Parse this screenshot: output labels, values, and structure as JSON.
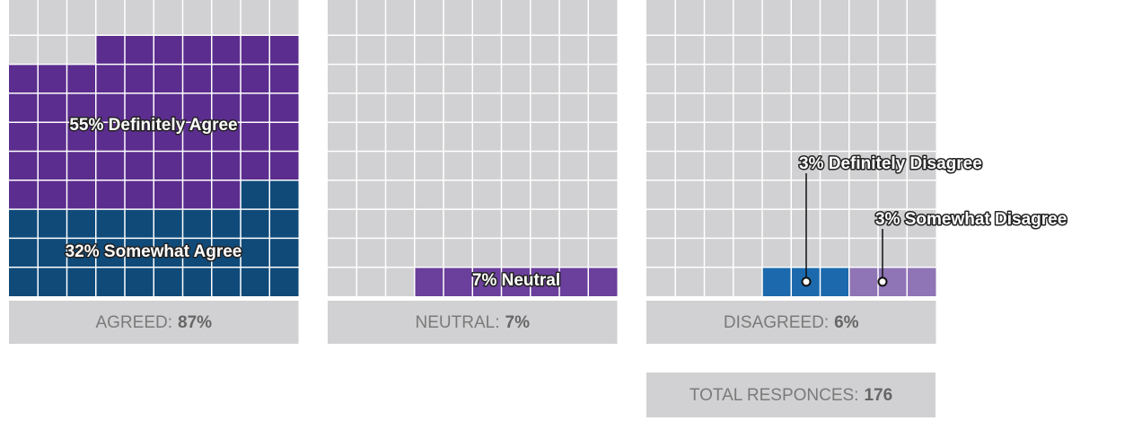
{
  "chart_data": {
    "type": "waffle",
    "panels": [
      {
        "series": [
          {
            "name": "Definitely Agree",
            "color": "#5b2d8e",
            "value": 55,
            "label": "55% Definitely Agree"
          },
          {
            "name": "Somewhat Agree",
            "color": "#0f4a79",
            "value": 32,
            "label": "32% Somewhat Agree"
          }
        ],
        "summary": {
          "label": "AGREED:",
          "value": 87,
          "value_label": "87%"
        }
      },
      {
        "series": [
          {
            "name": "Neutral",
            "color": "#6b3f9c",
            "value": 7,
            "label": "7% Neutral"
          }
        ],
        "summary": {
          "label": "NEUTRAL:",
          "value": 7,
          "value_label": "7%"
        }
      },
      {
        "series": [
          {
            "name": "Definitely Disagree",
            "color": "#1c6aad",
            "value": 3,
            "label": "3% Definitely Disagree"
          },
          {
            "name": "Somewhat Disagree",
            "color": "#8f74b6",
            "value": 3,
            "label": "3% Somewhat Disagree"
          }
        ],
        "summary": {
          "label": "DISAGREED:",
          "value": 6,
          "value_label": "6%"
        }
      }
    ],
    "total": {
      "label": "TOTAL RESPONCES:",
      "value": 176
    }
  }
}
